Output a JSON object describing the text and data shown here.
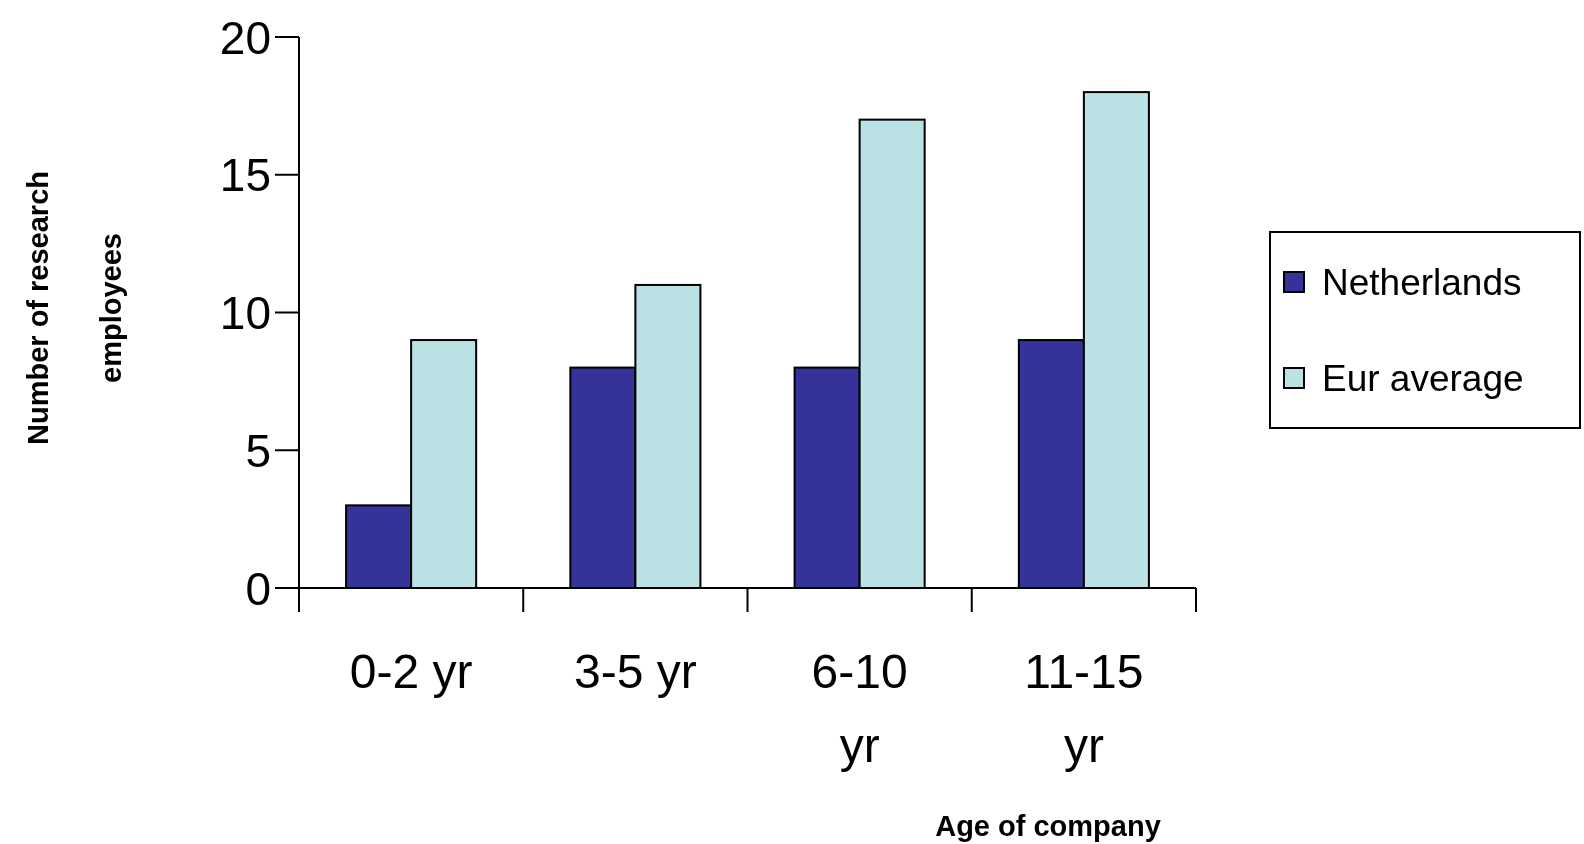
{
  "chart_data": {
    "type": "bar",
    "xlabel": "Age of company",
    "ylabel": "Number of research employees",
    "categories": [
      "0-2 yr",
      "3-5 yr",
      "6-10 yr",
      "11-15 yr"
    ],
    "series": [
      {
        "name": "Netherlands",
        "color": "#333399",
        "values": [
          3,
          8,
          8,
          9
        ]
      },
      {
        "name": "Eur average",
        "color": "#bae1e4",
        "values": [
          9,
          11,
          17,
          18
        ]
      }
    ],
    "ylim": [
      0,
      20
    ],
    "yticks": [
      0,
      5,
      10,
      15,
      20
    ],
    "grid": false,
    "legend": "right"
  }
}
